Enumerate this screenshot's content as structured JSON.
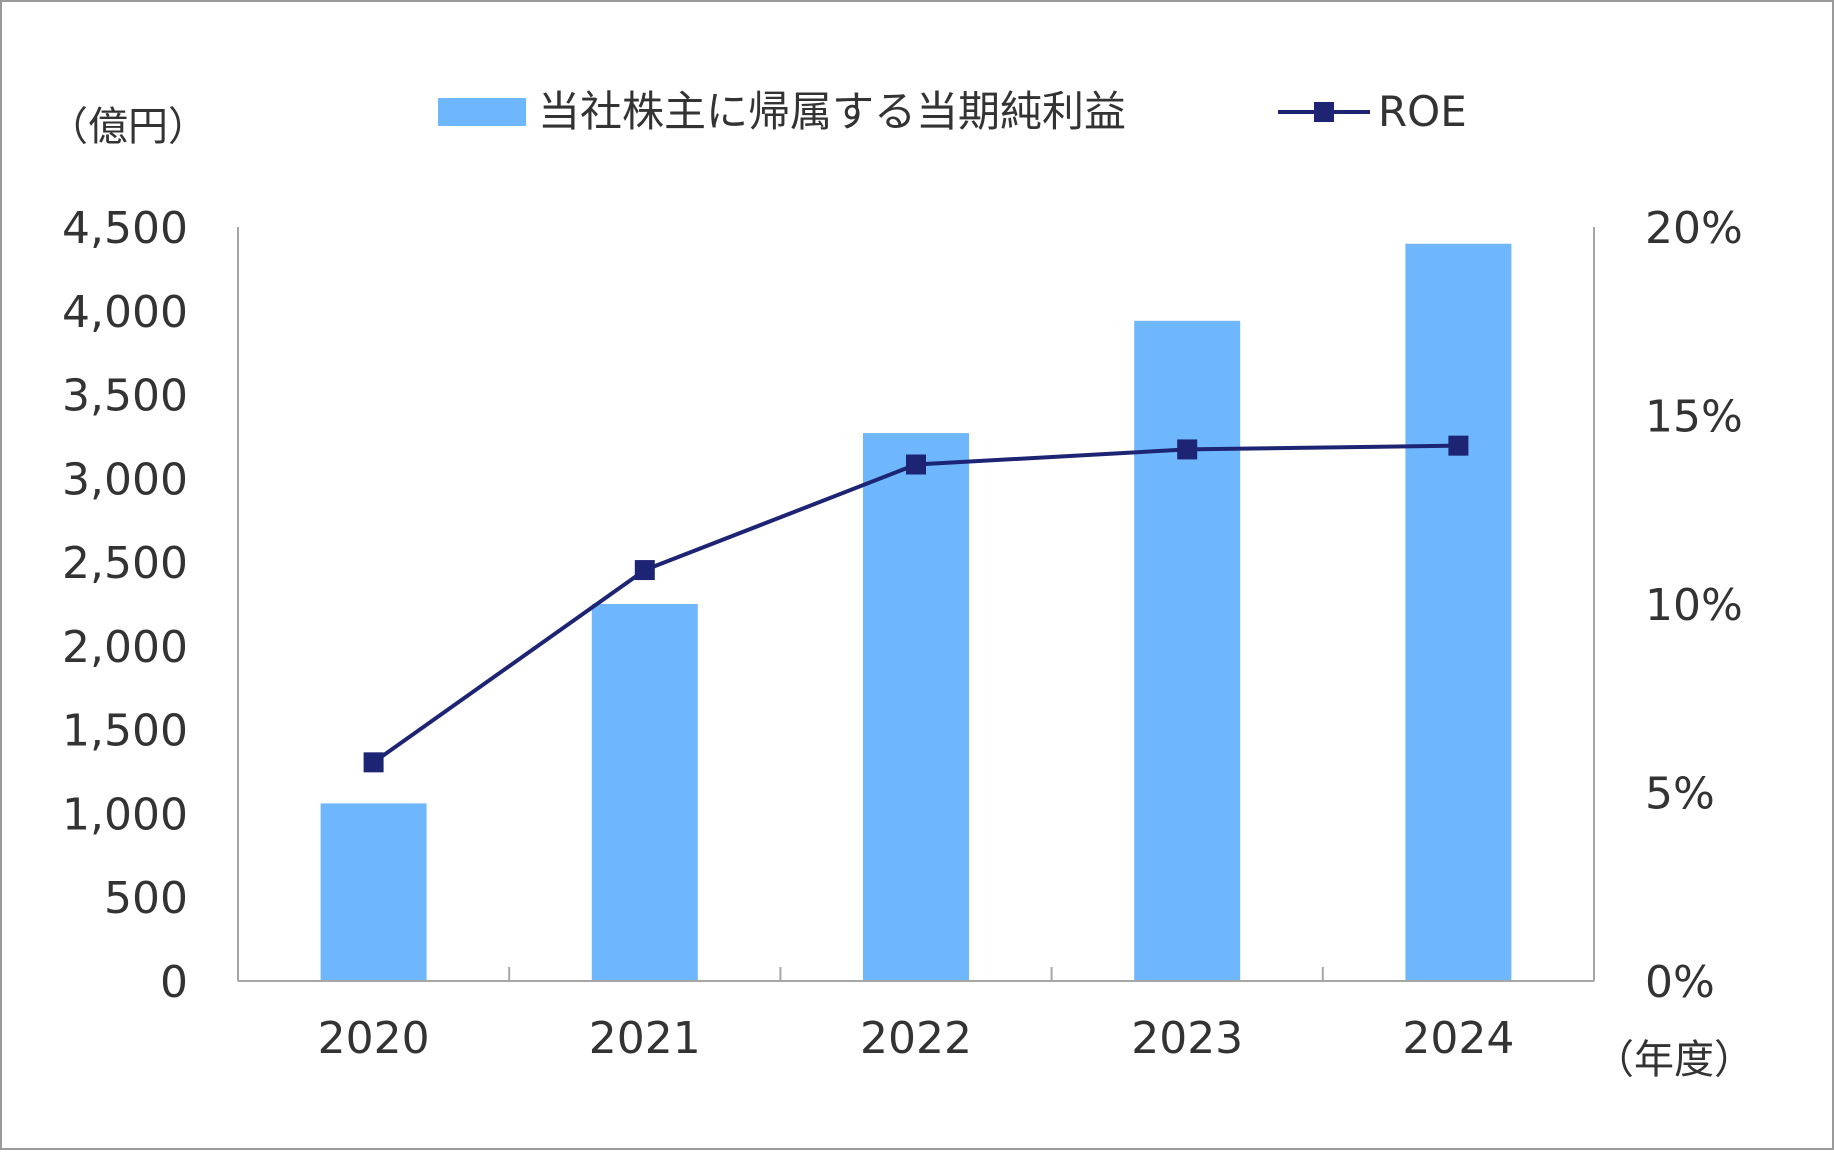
{
  "chart_data": {
    "type": "bar",
    "categories": [
      "2020",
      "2021",
      "2022",
      "2023",
      "2024"
    ],
    "series": [
      {
        "name": "当社株主に帰属する当期純利益",
        "type": "bar",
        "axis": "left",
        "values": [
          1060,
          2250,
          3270,
          3940,
          4400
        ]
      },
      {
        "name": "ROE",
        "type": "line",
        "axis": "right",
        "values": [
          5.8,
          10.9,
          13.7,
          14.1,
          14.2
        ]
      }
    ],
    "ylabel": "（億円）",
    "y2label": "",
    "xlabel": "（年度）",
    "ylim": [
      0,
      4500
    ],
    "y2lim": [
      0,
      20
    ],
    "yticks": [
      "0",
      "500",
      "1,000",
      "1,500",
      "2,000",
      "2,500",
      "3,000",
      "3,500",
      "4,000",
      "4,500"
    ],
    "y2ticks": [
      "0%",
      "5%",
      "10%",
      "15%",
      "20%"
    ],
    "legend_position": "top",
    "grid": false
  },
  "colors": {
    "bar": "#6fb7fd",
    "line": "#1d2473",
    "axis": "#a6a6a6",
    "text": "#333333",
    "border": "#9a9a9a"
  }
}
